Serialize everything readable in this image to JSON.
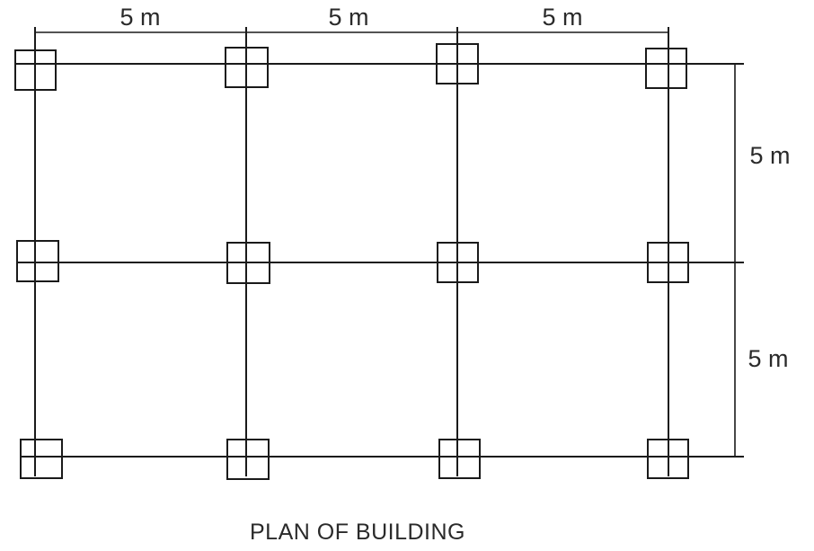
{
  "dimensions": {
    "top": [
      "5 m",
      "5 m",
      "5 m"
    ],
    "right": [
      "5 m",
      "5 m"
    ]
  },
  "title": "PLAN OF BUILDING"
}
